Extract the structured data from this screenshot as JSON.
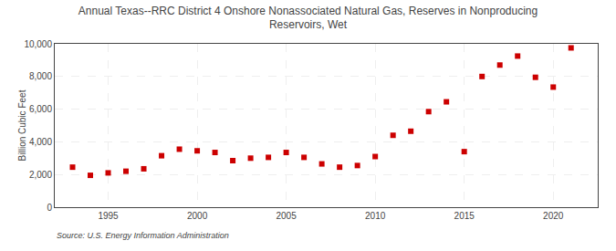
{
  "chart_data": {
    "type": "scatter",
    "title": "Annual Texas--RRC District 4 Onshore Nonassociated Natural Gas, Reserves in Nonproducing\nReservoirs, Wet",
    "ylabel": "Billion Cubic Feet",
    "annotations": [
      "Source: U.S. Energy Information Administration"
    ],
    "x": [
      1993,
      1994,
      1995,
      1996,
      1997,
      1998,
      1999,
      2000,
      2001,
      2002,
      2003,
      2004,
      2005,
      2006,
      2007,
      2008,
      2009,
      2010,
      2011,
      2012,
      2013,
      2014,
      2015,
      2016,
      2017,
      2018,
      2019,
      2020,
      2021
    ],
    "values": [
      2450,
      1950,
      2100,
      2200,
      2350,
      3150,
      3550,
      3450,
      3350,
      2850,
      3000,
      3050,
      3350,
      3050,
      2650,
      2450,
      2550,
      3100,
      4400,
      4650,
      5850,
      6450,
      3400,
      8000,
      8700,
      9250,
      7950,
      7350,
      9750
    ],
    "color": "#cc0000",
    "marker": "square",
    "xlim": [
      1992,
      2022.5
    ],
    "xticks": [
      1995,
      2000,
      2005,
      2010,
      2015,
      2020
    ],
    "ylim": [
      0,
      10000
    ],
    "yticks": [
      0,
      {
        "value": 2000,
        "label": "2,000"
      },
      {
        "value": 4000,
        "label": "4,000"
      },
      {
        "value": 6000,
        "label": "6,000"
      },
      {
        "value": 8000,
        "label": "8,000"
      },
      {
        "value": 10000,
        "label": "10,000"
      }
    ],
    "grid": true
  }
}
